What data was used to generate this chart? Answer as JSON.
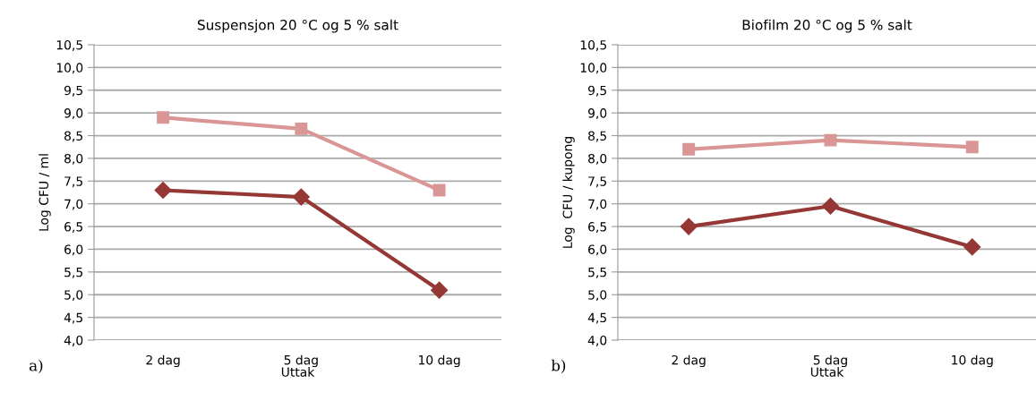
{
  "chart_data": [
    {
      "type": "line",
      "title": "Suspensjon 20 °C og 5 % salt",
      "xlabel": "Uttak",
      "ylabel": "Log CFU / ml",
      "categories": [
        "2 dag",
        "5 dag",
        "10 dag"
      ],
      "series": [
        {
          "color": "#d99694",
          "marker": "square",
          "values": [
            8.9,
            8.65,
            7.3
          ]
        },
        {
          "color": "#953735",
          "marker": "diamond",
          "values": [
            7.3,
            7.15,
            5.1
          ]
        }
      ],
      "ylim": [
        4.0,
        10.5
      ],
      "yticks": [
        {
          "value": 4.0,
          "label": "4,0"
        },
        {
          "value": 4.5,
          "label": "4,5"
        },
        {
          "value": 5.0,
          "label": "5,0"
        },
        {
          "value": 5.5,
          "label": "5,5"
        },
        {
          "value": 6.0,
          "label": "6,0"
        },
        {
          "value": 6.5,
          "label": "6,5"
        },
        {
          "value": 7.0,
          "label": "7,0"
        },
        {
          "value": 7.5,
          "label": "7,5"
        },
        {
          "value": 8.0,
          "label": "8,0"
        },
        {
          "value": 8.5,
          "label": "8,5"
        },
        {
          "value": 9.0,
          "label": "9,0"
        },
        {
          "value": 9.5,
          "label": "9,5"
        },
        {
          "value": 10.0,
          "label": "10,0"
        },
        {
          "value": 10.5,
          "label": "10,5"
        }
      ],
      "grid": "y",
      "annotations": [
        "a)"
      ]
    },
    {
      "type": "line",
      "title": "Biofilm 20 °C og 5 % salt",
      "xlabel": "Uttak",
      "ylabel": "Log  CFU / kupong",
      "categories": [
        "2 dag",
        "5 dag",
        "10 dag"
      ],
      "series": [
        {
          "color": "#d99694",
          "marker": "square",
          "values": [
            8.2,
            8.4,
            8.25
          ]
        },
        {
          "color": "#953735",
          "marker": "diamond",
          "values": [
            6.5,
            6.95,
            6.05
          ]
        }
      ],
      "ylim": [
        4.0,
        10.5
      ],
      "yticks": [
        {
          "value": 4.0,
          "label": "4,0"
        },
        {
          "value": 4.5,
          "label": "4,5"
        },
        {
          "value": 5.0,
          "label": "5,0"
        },
        {
          "value": 5.5,
          "label": "5,5"
        },
        {
          "value": 6.0,
          "label": "6,0"
        },
        {
          "value": 6.5,
          "label": "6,5"
        },
        {
          "value": 7.0,
          "label": "7,0"
        },
        {
          "value": 7.5,
          "label": "7,5"
        },
        {
          "value": 8.0,
          "label": "8,0"
        },
        {
          "value": 8.5,
          "label": "8,5"
        },
        {
          "value": 9.0,
          "label": "9,0"
        },
        {
          "value": 9.5,
          "label": "9,5"
        },
        {
          "value": 10.0,
          "label": "10,0"
        },
        {
          "value": 10.5,
          "label": "10,5"
        }
      ],
      "grid": "y",
      "annotations": [
        "b)"
      ]
    }
  ]
}
